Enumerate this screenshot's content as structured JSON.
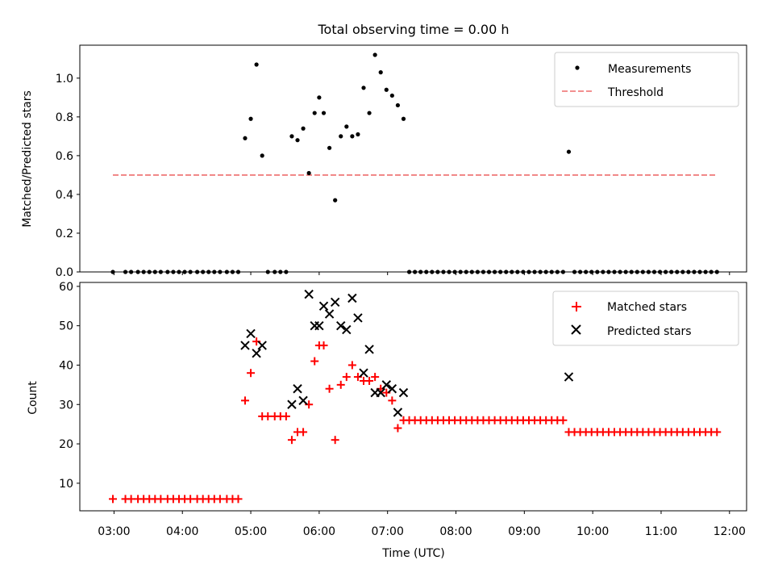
{
  "title": "Total observing time = 0.00 h",
  "chart_data": [
    {
      "type": "scatter",
      "title": "Total observing time = 0.00 h",
      "xlabel": "",
      "ylabel": "Matched/Predicted stars",
      "xlim": [
        "02:30",
        "12:15"
      ],
      "ylim": [
        0,
        1.17
      ],
      "yticks": [
        0.0,
        0.2,
        0.4,
        0.6,
        0.8,
        1.0
      ],
      "ytick_labels": [
        "0.0",
        "0.2",
        "0.4",
        "0.6",
        "0.8",
        "1.0"
      ],
      "grid": false,
      "legend": {
        "position": "upper right",
        "entries": [
          "Measurements",
          "Threshold"
        ]
      },
      "series": [
        {
          "name": "Measurements",
          "marker": "dot",
          "color": "#000000",
          "points": [
            [
              "02:59",
              0
            ],
            [
              "03:10",
              0
            ],
            [
              "03:15",
              0
            ],
            [
              "03:21",
              0
            ],
            [
              "03:26",
              0
            ],
            [
              "03:31",
              0
            ],
            [
              "03:36",
              0
            ],
            [
              "03:41",
              0
            ],
            [
              "03:47",
              0
            ],
            [
              "03:52",
              0
            ],
            [
              "03:57",
              0
            ],
            [
              "04:02",
              0
            ],
            [
              "04:07",
              0
            ],
            [
              "04:13",
              0
            ],
            [
              "04:18",
              0
            ],
            [
              "04:23",
              0
            ],
            [
              "04:28",
              0
            ],
            [
              "04:33",
              0
            ],
            [
              "04:39",
              0
            ],
            [
              "04:44",
              0
            ],
            [
              "04:49",
              0
            ],
            [
              "04:55",
              0.69
            ],
            [
              "05:00",
              0.79
            ],
            [
              "05:05",
              1.07
            ],
            [
              "05:10",
              0.6
            ],
            [
              "05:15",
              0
            ],
            [
              "05:21",
              0
            ],
            [
              "05:26",
              0
            ],
            [
              "05:31",
              0
            ],
            [
              "05:36",
              0.7
            ],
            [
              "05:41",
              0.68
            ],
            [
              "05:46",
              0.74
            ],
            [
              "05:51",
              0.51
            ],
            [
              "05:56",
              0.82
            ],
            [
              "06:00",
              0.9
            ],
            [
              "06:04",
              0.82
            ],
            [
              "06:09",
              0.64
            ],
            [
              "06:14",
              0.37
            ],
            [
              "06:19",
              0.7
            ],
            [
              "06:24",
              0.75
            ],
            [
              "06:29",
              0.7
            ],
            [
              "06:34",
              0.71
            ],
            [
              "06:39",
              0.95
            ],
            [
              "06:44",
              0.82
            ],
            [
              "06:49",
              1.12
            ],
            [
              "06:54",
              1.03
            ],
            [
              "06:59",
              0.94
            ],
            [
              "07:04",
              0.91
            ],
            [
              "07:09",
              0.86
            ],
            [
              "07:14",
              0.79
            ],
            [
              "07:19",
              0
            ],
            [
              "07:24",
              0
            ],
            [
              "07:29",
              0
            ],
            [
              "07:34",
              0
            ],
            [
              "07:39",
              0
            ],
            [
              "07:44",
              0
            ],
            [
              "07:49",
              0
            ],
            [
              "07:54",
              0
            ],
            [
              "07:59",
              0
            ],
            [
              "08:04",
              0
            ],
            [
              "08:09",
              0
            ],
            [
              "08:14",
              0
            ],
            [
              "08:19",
              0
            ],
            [
              "08:24",
              0
            ],
            [
              "08:29",
              0
            ],
            [
              "08:34",
              0
            ],
            [
              "08:39",
              0
            ],
            [
              "08:44",
              0
            ],
            [
              "08:49",
              0
            ],
            [
              "08:54",
              0
            ],
            [
              "08:59",
              0
            ],
            [
              "09:04",
              0
            ],
            [
              "09:09",
              0
            ],
            [
              "09:14",
              0
            ],
            [
              "09:19",
              0
            ],
            [
              "09:24",
              0
            ],
            [
              "09:29",
              0
            ],
            [
              "09:34",
              0
            ],
            [
              "09:39",
              0.62
            ],
            [
              "09:44",
              0
            ],
            [
              "09:49",
              0
            ],
            [
              "09:54",
              0
            ],
            [
              "09:59",
              0
            ],
            [
              "10:04",
              0
            ],
            [
              "10:09",
              0
            ],
            [
              "10:14",
              0
            ],
            [
              "10:19",
              0
            ],
            [
              "10:24",
              0
            ],
            [
              "10:29",
              0
            ],
            [
              "10:34",
              0
            ],
            [
              "10:39",
              0
            ],
            [
              "10:44",
              0
            ],
            [
              "10:49",
              0
            ],
            [
              "10:54",
              0
            ],
            [
              "10:59",
              0
            ],
            [
              "11:04",
              0
            ],
            [
              "11:09",
              0
            ],
            [
              "11:14",
              0
            ],
            [
              "11:19",
              0
            ],
            [
              "11:24",
              0
            ],
            [
              "11:29",
              0
            ],
            [
              "11:34",
              0
            ],
            [
              "11:39",
              0
            ],
            [
              "11:44",
              0
            ],
            [
              "11:49",
              0
            ]
          ]
        },
        {
          "name": "Threshold",
          "style": "dashed",
          "color": "#f08080",
          "points": [
            [
              "02:59",
              0.5
            ],
            [
              "11:49",
              0.5
            ]
          ]
        }
      ]
    },
    {
      "type": "scatter",
      "title": "",
      "xlabel": "Time (UTC)",
      "ylabel": "Count",
      "xlim": [
        "02:30",
        "12:15"
      ],
      "ylim": [
        3,
        61
      ],
      "yticks": [
        10,
        20,
        30,
        40,
        50,
        60
      ],
      "ytick_labels": [
        "10",
        "20",
        "30",
        "40",
        "50",
        "60"
      ],
      "xticks": [
        "03:00",
        "04:00",
        "05:00",
        "06:00",
        "07:00",
        "08:00",
        "09:00",
        "10:00",
        "11:00",
        "12:00"
      ],
      "xtick_labels": [
        "03:00",
        "04:00",
        "05:00",
        "06:00",
        "07:00",
        "08:00",
        "09:00",
        "10:00",
        "11:00",
        "12:00"
      ],
      "grid": false,
      "legend": {
        "position": "upper right",
        "entries": [
          "Matched stars",
          "Predicted stars"
        ]
      },
      "series": [
        {
          "name": "Matched stars",
          "marker": "plus",
          "color": "#ff0000",
          "points": [
            [
              "02:59",
              6
            ],
            [
              "03:10",
              6
            ],
            [
              "03:15",
              6
            ],
            [
              "03:21",
              6
            ],
            [
              "03:26",
              6
            ],
            [
              "03:31",
              6
            ],
            [
              "03:36",
              6
            ],
            [
              "03:41",
              6
            ],
            [
              "03:47",
              6
            ],
            [
              "03:52",
              6
            ],
            [
              "03:57",
              6
            ],
            [
              "04:02",
              6
            ],
            [
              "04:07",
              6
            ],
            [
              "04:13",
              6
            ],
            [
              "04:18",
              6
            ],
            [
              "04:23",
              6
            ],
            [
              "04:28",
              6
            ],
            [
              "04:33",
              6
            ],
            [
              "04:39",
              6
            ],
            [
              "04:44",
              6
            ],
            [
              "04:49",
              6
            ],
            [
              "04:55",
              31
            ],
            [
              "05:00",
              38
            ],
            [
              "05:05",
              46
            ],
            [
              "05:10",
              27
            ],
            [
              "05:15",
              27
            ],
            [
              "05:21",
              27
            ],
            [
              "05:26",
              27
            ],
            [
              "05:31",
              27
            ],
            [
              "05:36",
              21
            ],
            [
              "05:41",
              23
            ],
            [
              "05:46",
              23
            ],
            [
              "05:51",
              30
            ],
            [
              "05:56",
              41
            ],
            [
              "06:00",
              45
            ],
            [
              "06:04",
              45
            ],
            [
              "06:09",
              34
            ],
            [
              "06:14",
              21
            ],
            [
              "06:19",
              35
            ],
            [
              "06:24",
              37
            ],
            [
              "06:29",
              40
            ],
            [
              "06:34",
              37
            ],
            [
              "06:39",
              36
            ],
            [
              "06:44",
              36
            ],
            [
              "06:49",
              37
            ],
            [
              "06:54",
              34
            ],
            [
              "06:59",
              33
            ],
            [
              "07:04",
              31
            ],
            [
              "07:09",
              24
            ],
            [
              "07:14",
              26
            ],
            [
              "07:19",
              26
            ],
            [
              "07:24",
              26
            ],
            [
              "07:29",
              26
            ],
            [
              "07:34",
              26
            ],
            [
              "07:39",
              26
            ],
            [
              "07:44",
              26
            ],
            [
              "07:49",
              26
            ],
            [
              "07:54",
              26
            ],
            [
              "07:59",
              26
            ],
            [
              "08:04",
              26
            ],
            [
              "08:09",
              26
            ],
            [
              "08:14",
              26
            ],
            [
              "08:19",
              26
            ],
            [
              "08:24",
              26
            ],
            [
              "08:29",
              26
            ],
            [
              "08:34",
              26
            ],
            [
              "08:39",
              26
            ],
            [
              "08:44",
              26
            ],
            [
              "08:49",
              26
            ],
            [
              "08:54",
              26
            ],
            [
              "08:59",
              26
            ],
            [
              "09:04",
              26
            ],
            [
              "09:09",
              26
            ],
            [
              "09:14",
              26
            ],
            [
              "09:19",
              26
            ],
            [
              "09:24",
              26
            ],
            [
              "09:29",
              26
            ],
            [
              "09:34",
              26
            ],
            [
              "09:39",
              23
            ],
            [
              "09:44",
              23
            ],
            [
              "09:49",
              23
            ],
            [
              "09:54",
              23
            ],
            [
              "09:59",
              23
            ],
            [
              "10:04",
              23
            ],
            [
              "10:09",
              23
            ],
            [
              "10:14",
              23
            ],
            [
              "10:19",
              23
            ],
            [
              "10:24",
              23
            ],
            [
              "10:29",
              23
            ],
            [
              "10:34",
              23
            ],
            [
              "10:39",
              23
            ],
            [
              "10:44",
              23
            ],
            [
              "10:49",
              23
            ],
            [
              "10:54",
              23
            ],
            [
              "10:59",
              23
            ],
            [
              "11:04",
              23
            ],
            [
              "11:09",
              23
            ],
            [
              "11:14",
              23
            ],
            [
              "11:19",
              23
            ],
            [
              "11:24",
              23
            ],
            [
              "11:29",
              23
            ],
            [
              "11:34",
              23
            ],
            [
              "11:39",
              23
            ],
            [
              "11:44",
              23
            ],
            [
              "11:49",
              23
            ]
          ]
        },
        {
          "name": "Predicted stars",
          "marker": "x",
          "color": "#000000",
          "points": [
            [
              "04:55",
              45
            ],
            [
              "05:00",
              48
            ],
            [
              "05:05",
              43
            ],
            [
              "05:10",
              45
            ],
            [
              "05:36",
              30
            ],
            [
              "05:41",
              34
            ],
            [
              "05:46",
              31
            ],
            [
              "05:51",
              58
            ],
            [
              "05:56",
              50
            ],
            [
              "06:00",
              50
            ],
            [
              "06:04",
              55
            ],
            [
              "06:09",
              53
            ],
            [
              "06:14",
              56
            ],
            [
              "06:19",
              50
            ],
            [
              "06:24",
              49
            ],
            [
              "06:29",
              57
            ],
            [
              "06:34",
              52
            ],
            [
              "06:39",
              38
            ],
            [
              "06:44",
              44
            ],
            [
              "06:49",
              33
            ],
            [
              "06:54",
              33
            ],
            [
              "06:59",
              35
            ],
            [
              "07:04",
              34
            ],
            [
              "07:09",
              28
            ],
            [
              "07:14",
              33
            ],
            [
              "09:39",
              37
            ]
          ]
        }
      ]
    }
  ]
}
